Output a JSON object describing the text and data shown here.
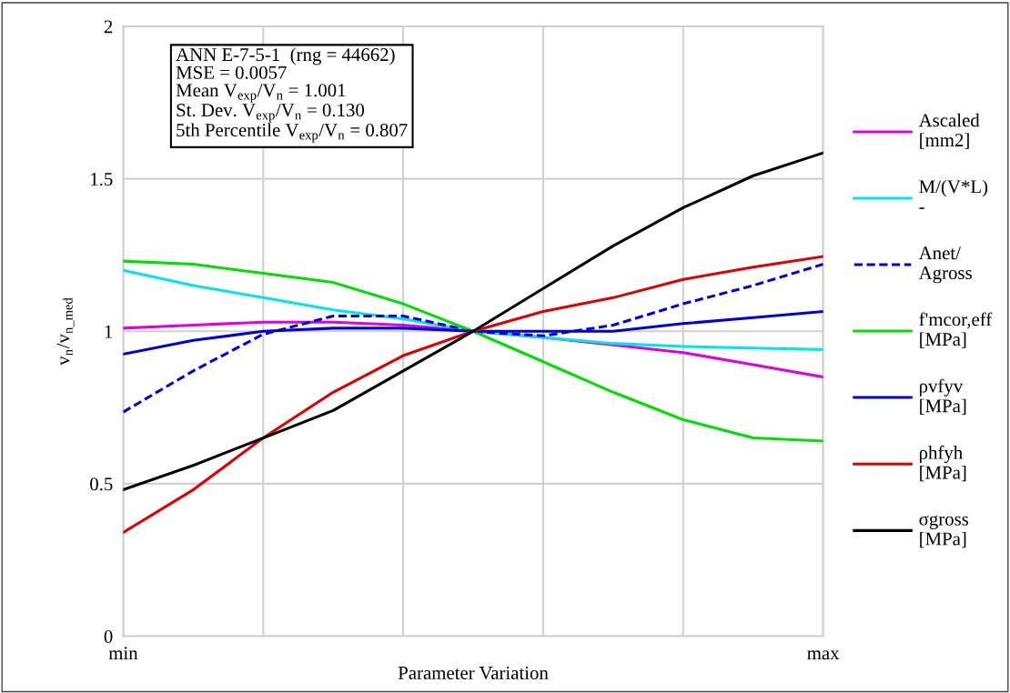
{
  "chart_data": {
    "type": "line",
    "xlabel": "Parameter Variation",
    "ylabel": "v$_{n}$/v$_{n_med}$",
    "categories": [
      "min",
      null,
      null,
      null,
      null,
      null,
      null,
      null,
      null,
      null,
      "max"
    ],
    "ylim": [
      0,
      2
    ],
    "yticks": [
      0,
      0.5,
      1,
      1.5,
      2
    ],
    "grid": true,
    "legend": "right",
    "marker": "none",
    "series": [
      {
        "name": "Ascaled\n[mm2]",
        "color": "#e000e0",
        "values": [
          1.01,
          1.02,
          1.03,
          1.03,
          1.02,
          1.0,
          0.98,
          0.955,
          0.93,
          0.89,
          0.85
        ]
      },
      {
        "name": "M/(V*L)\n-",
        "color": "#00e5ee",
        "values": [
          1.2,
          1.15,
          1.11,
          1.07,
          1.04,
          1.0,
          0.98,
          0.96,
          0.95,
          0.945,
          0.94
        ]
      },
      {
        "name": "Anet/\nAgross",
        "color": "#0000e0",
        "line_style": "dashed",
        "values": [
          0.735,
          0.87,
          0.99,
          1.05,
          1.05,
          1.0,
          0.985,
          1.02,
          1.09,
          1.15,
          1.22
        ]
      },
      {
        "name": "f'mcor,eff\n[MPa]",
        "color": "#00e000",
        "values": [
          1.23,
          1.22,
          1.19,
          1.16,
          1.09,
          1.0,
          0.9,
          0.8,
          0.71,
          0.65,
          0.64
        ]
      },
      {
        "name": "ρvfyv\n[MPa]",
        "color": "#0000e0",
        "values": [
          0.925,
          0.97,
          1.0,
          1.01,
          1.01,
          1.0,
          1.0,
          1.0,
          1.025,
          1.045,
          1.065
        ]
      },
      {
        "name": "ρhfyh\n[MPa]",
        "color": "#e00000",
        "values": [
          0.34,
          0.48,
          0.65,
          0.8,
          0.92,
          1.0,
          1.065,
          1.11,
          1.17,
          1.21,
          1.245
        ]
      },
      {
        "name": "σgross\n[MPa]",
        "color": "#000000",
        "values": [
          0.48,
          0.56,
          0.65,
          0.74,
          0.87,
          1.0,
          1.14,
          1.28,
          1.405,
          1.51,
          1.585
        ]
      }
    ],
    "annotations": [
      "ANN E-7-5-1  (rng = 44662)\nMSE = 0.0057\nMean V$_{exp}$/V$_{n}$ = 1.001\nSt. Dev. V$_{exp}$/V$_{n}$ = 0.130\n5th Percentile V$_{exp}$/V$_{n}$ = 0.807"
    ]
  }
}
